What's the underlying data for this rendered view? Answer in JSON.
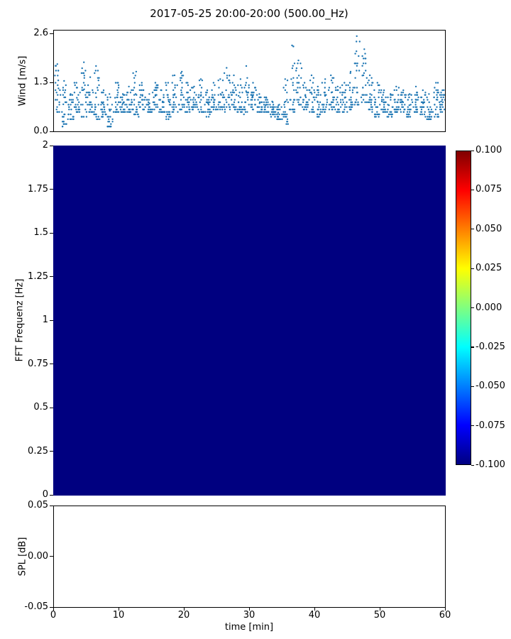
{
  "title": "2017-05-25 20:00-20:00 (500.00_Hz)",
  "colors": {
    "scatter_marker": "#1f77b4",
    "heatmap_fill": "#000080",
    "axis": "#000000",
    "background": "#ffffff"
  },
  "chart_data": [
    {
      "type": "scatter",
      "name": "wind-speed-timeseries",
      "ylabel": "Wind [m/s]",
      "xlabel": "",
      "yticks": [
        "2.6",
        "1.3",
        "0.0"
      ],
      "ylim": [
        0,
        2.7
      ],
      "xlim": [
        0,
        60
      ],
      "marker_color": "#1f77b4",
      "points_per_minute": 24,
      "seed": 7,
      "wind_envelope": {
        "comment": "per-minute observed min (lo) and max (hi) wind speed in m/s, minutes 1-60",
        "lo": [
          0.5,
          0.1,
          0.3,
          0.5,
          0.4,
          0.5,
          0.3,
          0.4,
          0.1,
          0.5,
          0.5,
          0.5,
          0.4,
          0.6,
          0.5,
          0.6,
          0.5,
          0.3,
          0.5,
          0.6,
          0.5,
          0.6,
          0.5,
          0.4,
          0.5,
          0.6,
          0.5,
          0.6,
          0.5,
          0.4,
          0.6,
          0.5,
          0.5,
          0.4,
          0.3,
          0.2,
          0.5,
          0.7,
          0.6,
          0.5,
          0.4,
          0.5,
          0.6,
          0.5,
          0.5,
          0.6,
          0.7,
          0.8,
          0.5,
          0.4,
          0.5,
          0.4,
          0.5,
          0.5,
          0.4,
          0.5,
          0.4,
          0.3,
          0.4,
          0.5
        ],
        "hi": [
          1.8,
          1.35,
          1.0,
          1.3,
          1.85,
          1.45,
          1.75,
          1.1,
          1.0,
          1.3,
          1.0,
          1.2,
          1.6,
          1.3,
          1.0,
          1.3,
          1.1,
          1.3,
          1.5,
          1.6,
          1.3,
          1.2,
          1.4,
          1.1,
          1.3,
          1.4,
          1.7,
          1.5,
          1.4,
          1.75,
          1.3,
          1.0,
          0.9,
          0.8,
          0.7,
          1.4,
          2.3,
          1.9,
          1.3,
          1.5,
          1.2,
          1.4,
          1.5,
          1.2,
          1.3,
          1.6,
          2.55,
          2.2,
          1.5,
          1.3,
          1.1,
          1.0,
          1.2,
          1.1,
          1.0,
          1.2,
          1.1,
          1.0,
          1.3,
          1.1
        ]
      }
    },
    {
      "type": "heatmap",
      "name": "fft-spectrogram",
      "ylabel": "FFT Frequenz [Hz]",
      "yticks": [
        "2",
        "1.75",
        "1.5",
        "1.25",
        "1",
        "0.75",
        "0.5",
        "0.25",
        "0"
      ],
      "ylim": [
        0,
        2
      ],
      "xlim": [
        0,
        60
      ],
      "uniform_value": -0.1,
      "fill_color": "#000080",
      "colorbar": {
        "range": [
          -0.1,
          0.1
        ],
        "ticks": [
          "0.100",
          "0.075",
          "0.050",
          "0.025",
          "0.000",
          "-0.025",
          "-0.050",
          "-0.075",
          "-0.100"
        ],
        "cmap": "jet",
        "cmap_stops": [
          {
            "pos": 0.0,
            "color": "#000080"
          },
          {
            "pos": 0.125,
            "color": "#0000ff"
          },
          {
            "pos": 0.375,
            "color": "#00ffff"
          },
          {
            "pos": 0.625,
            "color": "#ffff00"
          },
          {
            "pos": 0.875,
            "color": "#ff0000"
          },
          {
            "pos": 1.0,
            "color": "#800000"
          }
        ]
      }
    },
    {
      "type": "line",
      "name": "spl-timeseries",
      "ylabel": "SPL [dB]",
      "xlabel": "time [min]",
      "yticks": [
        "0.05",
        "0.00",
        "-0.05"
      ],
      "ylim": [
        -0.05,
        0.05
      ],
      "xticks": [
        "0",
        "10",
        "20",
        "30",
        "40",
        "50",
        "60"
      ],
      "xlim": [
        0,
        60
      ],
      "values": []
    }
  ]
}
